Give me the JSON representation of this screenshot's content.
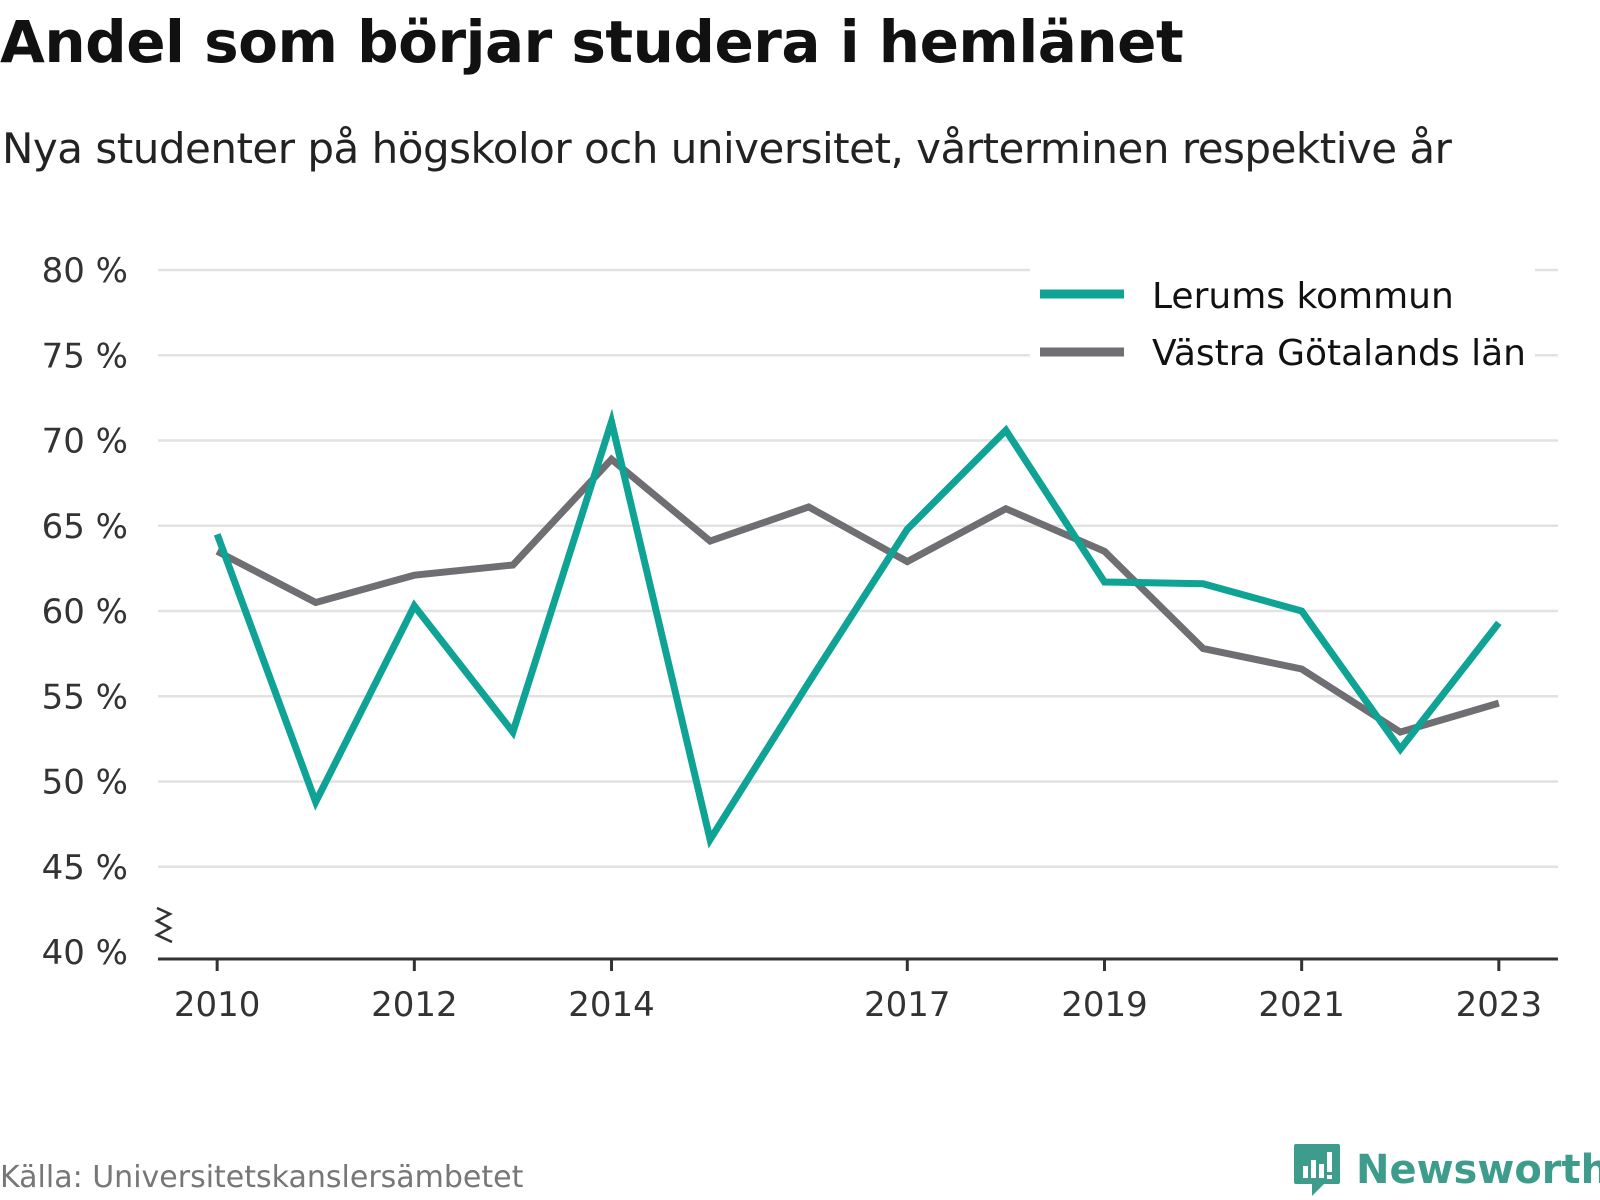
{
  "header": {
    "title": "Andel som börjar studera i hemlänet",
    "subtitle": "Nya studenter på högskolor och universitet, vårterminen respektive år"
  },
  "footer": {
    "source": "Källa: Universitetskanslersämbetet",
    "brand": "Newsworthy"
  },
  "colors": {
    "lerum": "#0ea394",
    "vgr": "#6f6e72",
    "grid": "#e2e2e2",
    "axis": "#333333",
    "brand": "#3e9c8d"
  },
  "icons": {
    "brand_logo": "bar-chart-speech-bubble-icon",
    "axis_break": "zigzag-axis-break-icon"
  },
  "chart_data": {
    "type": "line",
    "x": [
      2010,
      2011,
      2012,
      2013,
      2014,
      2015,
      2016,
      2017,
      2018,
      2019,
      2020,
      2021,
      2022,
      2023
    ],
    "x_tick_labels": [
      "2010",
      "2012",
      "2014",
      "2017",
      "2019",
      "2021",
      "2023"
    ],
    "y_tick_labels": [
      "40 %",
      "45 %",
      "50 %",
      "55 %",
      "60 %",
      "65 %",
      "70 %",
      "75 %",
      "80 %"
    ],
    "y_ticks": [
      40,
      45,
      50,
      55,
      60,
      65,
      70,
      75,
      80
    ],
    "ylim": [
      40,
      80
    ],
    "xlim": [
      2009.4,
      2023.6
    ],
    "y_axis_break": true,
    "grid": true,
    "legend_position": "top-right",
    "series": [
      {
        "name": "Lerums kommun",
        "color": "#0ea394",
        "values": [
          64.5,
          48.8,
          60.3,
          52.9,
          71.1,
          46.6,
          55.8,
          64.8,
          70.6,
          61.7,
          61.6,
          60.0,
          51.9,
          59.3
        ]
      },
      {
        "name": "Västra Götalands län",
        "color": "#6f6e72",
        "values": [
          63.5,
          60.5,
          62.1,
          62.7,
          68.9,
          64.1,
          66.1,
          62.9,
          66.0,
          63.5,
          57.8,
          56.6,
          52.9,
          54.6
        ]
      }
    ]
  }
}
